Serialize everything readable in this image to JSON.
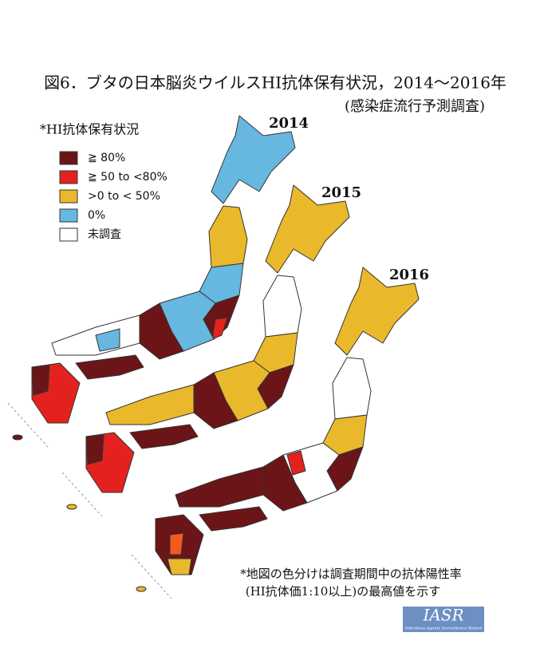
{
  "title": "図6．ブタの日本脳炎ウイルスHI抗体保有状況，2014～2016年",
  "subtitle": "(感染症流行予測調査)",
  "maps": [
    {
      "year": "2014"
    },
    {
      "year": "2015"
    },
    {
      "year": "2016"
    }
  ],
  "legend": {
    "title": "*HI抗体保有状況",
    "items": [
      {
        "label": "≧ 80%",
        "color": "#6b1518"
      },
      {
        "label": "≧ 50 to <80%",
        "color": "#e3221f"
      },
      {
        "label": ">0 to < 50%",
        "color": "#e9b92b"
      },
      {
        "label": "0%",
        "color": "#66b8e0"
      },
      {
        "label": "未調査",
        "color": "#ffffff"
      }
    ]
  },
  "footnote": [
    "*地図の色分けは調査期間中の抗体陽性率",
    "(HI抗体価1:10以上)の最高値を示す"
  ],
  "logo": {
    "name": "IASR",
    "subtitle": "Infectious Agents Surveillance Report"
  }
}
